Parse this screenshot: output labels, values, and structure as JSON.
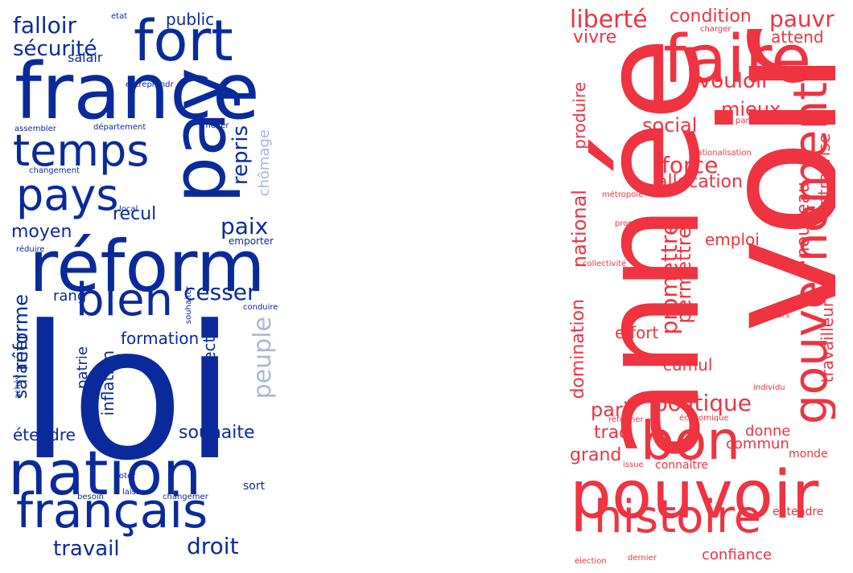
{
  "colors": {
    "left_primary": "#0a2a9c",
    "left_light": "#a9b6d8",
    "right_primary": "#ef3340",
    "right_light": "#f7a5aa",
    "background": "#ffffff"
  },
  "left_cloud": {
    "words": [
      {
        "text": "loi",
        "weight": 1.0
      },
      {
        "text": "france",
        "weight": 0.92
      },
      {
        "text": "pay",
        "weight": 0.85
      },
      {
        "text": "réform",
        "weight": 0.82
      },
      {
        "text": "nation",
        "weight": 0.75
      },
      {
        "text": "fort",
        "weight": 0.7
      },
      {
        "text": "temps",
        "weight": 0.6
      },
      {
        "text": "pays",
        "weight": 0.6
      },
      {
        "text": "français",
        "weight": 0.68
      },
      {
        "text": "bien",
        "weight": 0.55
      },
      {
        "text": "peuple",
        "weight": 0.3
      },
      {
        "text": "droit",
        "weight": 0.3
      },
      {
        "text": "travail",
        "weight": 0.3
      },
      {
        "text": "sécurité",
        "weight": 0.3
      },
      {
        "text": "falloir",
        "weight": 0.3
      },
      {
        "text": "paix",
        "weight": 0.28
      },
      {
        "text": "cesser",
        "weight": 0.28
      },
      {
        "text": "repris",
        "weight": 0.28
      },
      {
        "text": "réforme",
        "weight": 0.28
      },
      {
        "text": "salarier",
        "weight": 0.25
      },
      {
        "text": "souhaite",
        "weight": 0.22
      },
      {
        "text": "étendre",
        "weight": 0.2
      },
      {
        "text": "recul",
        "weight": 0.22
      },
      {
        "text": "moyen",
        "weight": 0.22
      },
      {
        "text": "collectif",
        "weight": 0.22
      },
      {
        "text": "formation",
        "weight": 0.2
      },
      {
        "text": "inflation",
        "weight": 0.2
      },
      {
        "text": "patrie",
        "weight": 0.18
      },
      {
        "text": "rang",
        "weight": 0.18
      },
      {
        "text": "chômage",
        "weight": 0.2
      },
      {
        "text": "public",
        "weight": 0.18
      },
      {
        "text": "salair",
        "weight": 0.16
      },
      {
        "text": "sort",
        "weight": 0.12
      },
      {
        "text": "emporter",
        "weight": 0.1
      },
      {
        "text": "etat",
        "weight": 0.08
      },
      {
        "text": "entreprendr",
        "weight": 0.08
      },
      {
        "text": "assembler",
        "weight": 0.08
      },
      {
        "text": "département",
        "weight": 0.08
      },
      {
        "text": "mener",
        "weight": 0.08
      },
      {
        "text": "changement",
        "weight": 0.08
      },
      {
        "text": "local",
        "weight": 0.08
      },
      {
        "text": "réduire",
        "weight": 0.08
      },
      {
        "text": "souhaiter",
        "weight": 0.08
      },
      {
        "text": "conduire",
        "weight": 0.08
      },
      {
        "text": "achèv",
        "weight": 0.08
      },
      {
        "text": "voter",
        "weight": 0.08
      },
      {
        "text": "besoin",
        "weight": 0.08
      },
      {
        "text": "laisser",
        "weight": 0.08
      },
      {
        "text": "changemer",
        "weight": 0.08
      }
    ]
  },
  "right_cloud": {
    "words": [
      {
        "text": "voir",
        "weight": 1.0
      },
      {
        "text": "année",
        "weight": 0.95
      },
      {
        "text": "pouvoir",
        "weight": 0.75
      },
      {
        "text": "faire",
        "weight": 0.7
      },
      {
        "text": "bon",
        "weight": 0.62
      },
      {
        "text": "histoire",
        "weight": 0.62
      },
      {
        "text": "gouvernement",
        "weight": 0.55
      },
      {
        "text": "liberté",
        "weight": 0.3
      },
      {
        "text": "condition",
        "weight": 0.22
      },
      {
        "text": "pauvre",
        "weight": 0.22
      },
      {
        "text": "vivre",
        "weight": 0.22
      },
      {
        "text": "attend",
        "weight": 0.2
      },
      {
        "text": "vouloir",
        "weight": 0.24
      },
      {
        "text": "mieux",
        "weight": 0.22
      },
      {
        "text": "social",
        "weight": 0.22
      },
      {
        "text": "force",
        "weight": 0.28
      },
      {
        "text": "allocation",
        "weight": 0.22
      },
      {
        "text": "entreprise",
        "weight": 0.2
      },
      {
        "text": "nouveau",
        "weight": 0.22
      },
      {
        "text": "produire",
        "weight": 0.2
      },
      {
        "text": "national",
        "weight": 0.24
      },
      {
        "text": "domination",
        "weight": 0.22
      },
      {
        "text": "promettre",
        "weight": 0.28
      },
      {
        "text": "permettre",
        "weight": 0.24
      },
      {
        "text": "emploi",
        "weight": 0.2
      },
      {
        "text": "effort",
        "weight": 0.22
      },
      {
        "text": "cumul",
        "weight": 0.2
      },
      {
        "text": "travailleur",
        "weight": 0.2
      },
      {
        "text": "politique",
        "weight": 0.28
      },
      {
        "text": "pari",
        "weight": 0.24
      },
      {
        "text": "trac",
        "weight": 0.22
      },
      {
        "text": "donne",
        "weight": 0.18
      },
      {
        "text": "commun",
        "weight": 0.18
      },
      {
        "text": "grand",
        "weight": 0.2
      },
      {
        "text": "connaître",
        "weight": 0.12
      },
      {
        "text": "monde",
        "weight": 0.1
      },
      {
        "text": "entendre",
        "weight": 0.1
      },
      {
        "text": "confiance",
        "weight": 0.18
      },
      {
        "text": "charger",
        "weight": 0.08
      },
      {
        "text": "parlement",
        "weight": 0.08
      },
      {
        "text": "nationalisation",
        "weight": 0.08
      },
      {
        "text": "métropole",
        "weight": 0.08
      },
      {
        "text": "proposer",
        "weight": 0.08
      },
      {
        "text": "collectivité",
        "weight": 0.08
      },
      {
        "text": "concours",
        "weight": 0.08
      },
      {
        "text": "individu",
        "weight": 0.08
      },
      {
        "text": "réformer",
        "weight": 0.08
      },
      {
        "text": "économique",
        "weight": 0.08
      },
      {
        "text": "issue",
        "weight": 0.08
      },
      {
        "text": "élection",
        "weight": 0.08
      },
      {
        "text": "dernier",
        "weight": 0.08
      }
    ]
  }
}
